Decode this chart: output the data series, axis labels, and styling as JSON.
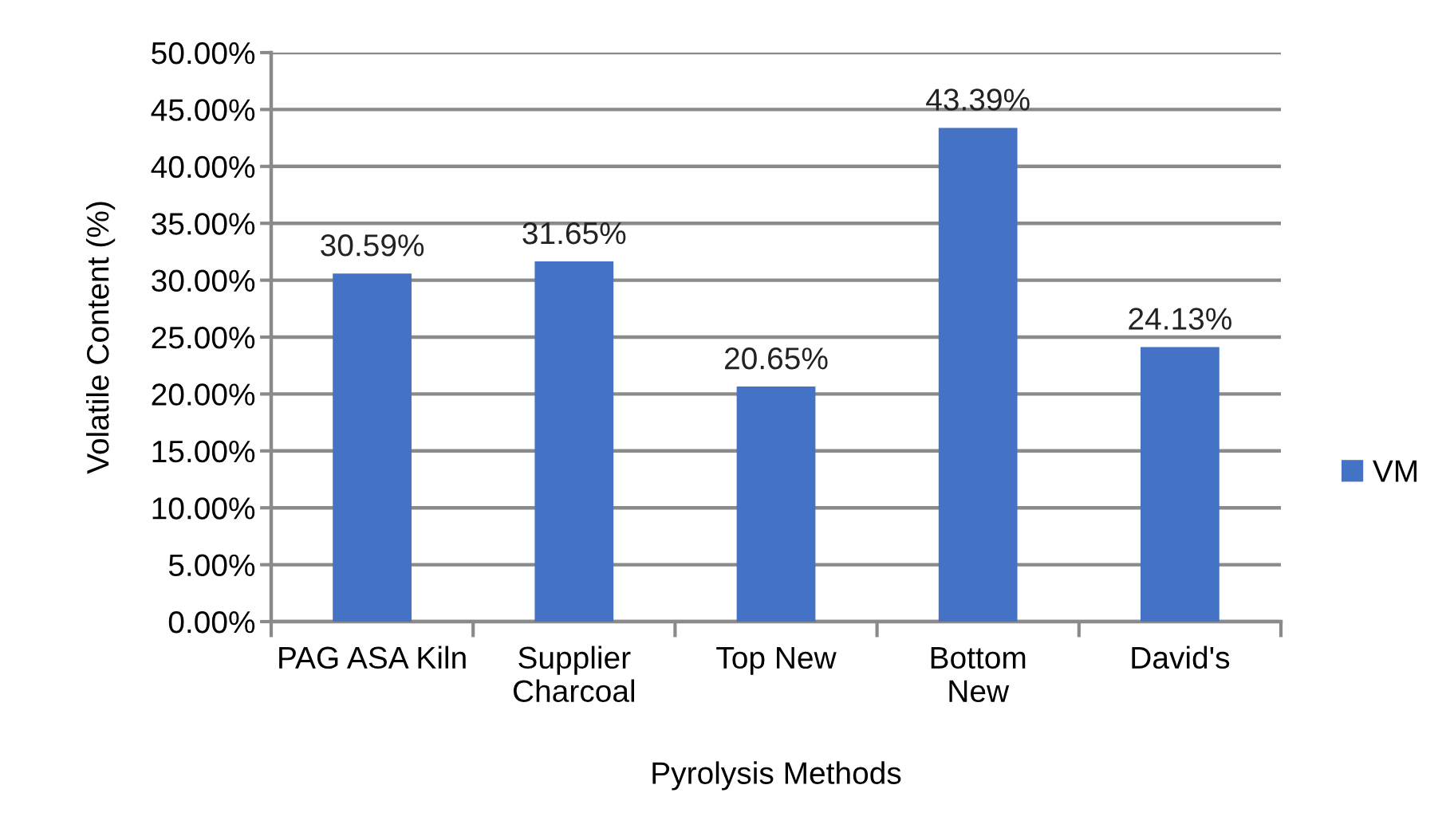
{
  "chart_data": {
    "type": "bar",
    "xlabel": "Pyrolysis Methods",
    "ylabel": "Volatile Content (%)",
    "categories": [
      "PAG ASA Kiln",
      "Supplier\nCharcoal",
      "Top New",
      "Bottom\nNew",
      "David's"
    ],
    "series": [
      {
        "name": "VM",
        "color": "#4472c4",
        "values": [
          30.59,
          31.65,
          20.65,
          43.39,
          24.13
        ],
        "value_labels": [
          "30.59%",
          "31.65%",
          "20.65%",
          "43.39%",
          "24.13%"
        ]
      }
    ],
    "ylim": [
      0,
      50
    ],
    "yticks": [
      {
        "value": 0,
        "label": "0.00%"
      },
      {
        "value": 5,
        "label": "5.00%"
      },
      {
        "value": 10,
        "label": "10.00%"
      },
      {
        "value": 15,
        "label": "15.00%"
      },
      {
        "value": 20,
        "label": "20.00%"
      },
      {
        "value": 25,
        "label": "25.00%"
      },
      {
        "value": 30,
        "label": "30.00%"
      },
      {
        "value": 35,
        "label": "35.00%"
      },
      {
        "value": 40,
        "label": "40.00%"
      },
      {
        "value": 45,
        "label": "45.00%"
      },
      {
        "value": 50,
        "label": "50.00%"
      }
    ],
    "grid": "y",
    "legend": "right"
  }
}
